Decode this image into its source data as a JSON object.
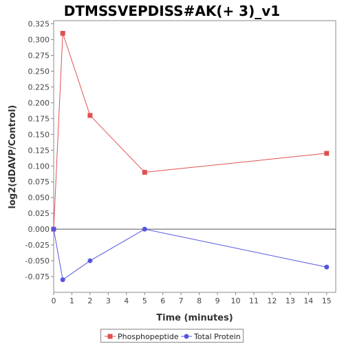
{
  "chart_data": {
    "type": "line",
    "title": "DTMSSVEPDISS#AK(+ 3)_v1",
    "xlabel": "Time (minutes)",
    "ylabel": "log2(dDAVP/Control)",
    "xlim": [
      0,
      15.5
    ],
    "ylim": [
      -0.1,
      0.33
    ],
    "xticks": [
      "0",
      "1",
      "2",
      "3",
      "4",
      "5",
      "6",
      "7",
      "8",
      "9",
      "10",
      "11",
      "12",
      "13",
      "14",
      "15"
    ],
    "yticks": [
      "-0.075",
      "-0.050",
      "-0.025",
      "0.000",
      "0.025",
      "0.050",
      "0.075",
      "0.100",
      "0.125",
      "0.150",
      "0.175",
      "0.200",
      "0.225",
      "0.250",
      "0.275",
      "0.300",
      "0.325"
    ],
    "series": [
      {
        "name": "Phosphopeptide",
        "color": "#e05050",
        "marker": "square",
        "x": [
          0,
          0.5,
          2,
          5,
          15
        ],
        "y": [
          0.0,
          0.31,
          0.18,
          0.09,
          0.12
        ]
      },
      {
        "name": "Total Protein",
        "color": "#5555e0",
        "marker": "circle",
        "x": [
          0,
          0.5,
          2,
          5,
          15
        ],
        "y": [
          0.0,
          -0.08,
          -0.05,
          0.0,
          -0.06
        ]
      }
    ],
    "zero_line": true,
    "legend_position": "bottom"
  }
}
